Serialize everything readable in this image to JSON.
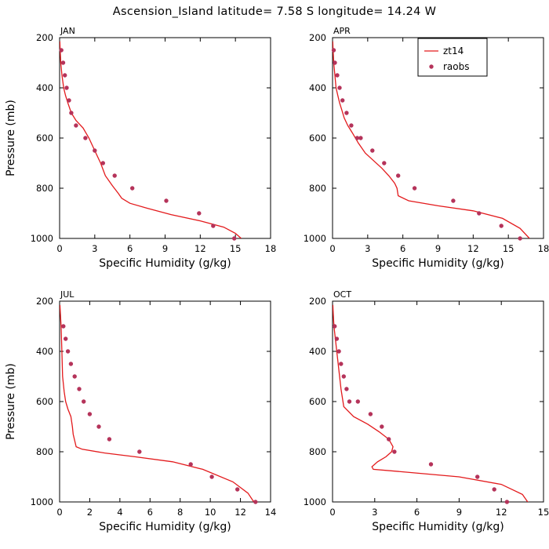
{
  "figure": {
    "title": "Ascension_Island  latitude= 7.58 S longitude= 14.24 W"
  },
  "legend": {
    "line_label": "zt14",
    "points_label": "raobs"
  },
  "colors": {
    "line": "#e31a1c",
    "points": "#b5335a"
  },
  "chart_data": [
    {
      "type": "line",
      "panel": "JAN",
      "xlabel": "Specific Humidity (g/kg)",
      "ylabel": "Pressure (mb)",
      "xlim": [
        0,
        18
      ],
      "xticks": [
        0,
        3,
        6,
        9,
        12,
        15,
        18
      ],
      "ylim": [
        200,
        1000
      ],
      "yticks": [
        200,
        400,
        600,
        800,
        1000
      ],
      "y_inverted": true,
      "legend": false,
      "series": [
        {
          "name": "zt14",
          "style": "line",
          "x": [
            0.02,
            0.05,
            0.1,
            0.2,
            0.35,
            0.5,
            0.7,
            1.0,
            1.4,
            2.0,
            2.5,
            3.0,
            3.5,
            3.9,
            4.5,
            5.0,
            5.3,
            6.0,
            7.5,
            9.5,
            12.0,
            14.0,
            15.0,
            15.5
          ],
          "y": [
            215,
            250,
            300,
            350,
            400,
            430,
            460,
            500,
            530,
            560,
            600,
            650,
            700,
            750,
            790,
            820,
            840,
            860,
            880,
            905,
            930,
            955,
            980,
            1000
          ]
        },
        {
          "name": "raobs",
          "style": "points",
          "x": [
            0.15,
            0.3,
            0.45,
            0.6,
            0.8,
            1.0,
            1.4,
            2.2,
            3.0,
            3.7,
            4.7,
            6.2,
            9.1,
            11.9,
            13.1,
            14.9
          ],
          "y": [
            250,
            300,
            350,
            400,
            450,
            500,
            550,
            600,
            650,
            700,
            750,
            800,
            850,
            900,
            950,
            1000
          ]
        }
      ]
    },
    {
      "type": "line",
      "panel": "APR",
      "xlabel": "Specific Humidity (g/kg)",
      "ylabel": "",
      "xlim": [
        0,
        18
      ],
      "xticks": [
        0,
        3,
        6,
        9,
        12,
        15,
        18
      ],
      "ylim": [
        200,
        1000
      ],
      "yticks": [
        200,
        400,
        600,
        800,
        1000
      ],
      "y_inverted": true,
      "legend": true,
      "series": [
        {
          "name": "zt14",
          "style": "line",
          "x": [
            0.02,
            0.05,
            0.1,
            0.2,
            0.3,
            0.45,
            0.6,
            0.8,
            1.0,
            1.3,
            1.7,
            2.2,
            2.8,
            3.5,
            4.2,
            4.8,
            5.3,
            5.5,
            5.6,
            6.5,
            9.0,
            12.0,
            14.5,
            16.0,
            16.8
          ],
          "y": [
            215,
            250,
            300,
            350,
            400,
            430,
            460,
            490,
            520,
            550,
            580,
            620,
            660,
            690,
            720,
            750,
            780,
            800,
            830,
            850,
            870,
            890,
            920,
            960,
            1000
          ]
        },
        {
          "name": "raobs",
          "style": "points",
          "x": [
            0.1,
            0.2,
            0.4,
            0.6,
            0.85,
            1.2,
            1.6,
            2.1,
            2.4,
            3.4,
            4.4,
            5.6,
            7.0,
            10.3,
            12.5,
            14.4,
            16.0
          ],
          "y": [
            250,
            300,
            350,
            400,
            450,
            500,
            550,
            600,
            600,
            650,
            700,
            750,
            800,
            850,
            900,
            950,
            1000
          ]
        }
      ]
    },
    {
      "type": "line",
      "panel": "JUL",
      "xlabel": "Specific Humidity (g/kg)",
      "ylabel": "Pressure (mb)",
      "xlim": [
        0,
        14
      ],
      "xticks": [
        0,
        2,
        4,
        6,
        8,
        10,
        12,
        14
      ],
      "ylim": [
        200,
        1000
      ],
      "yticks": [
        200,
        400,
        600,
        800,
        1000
      ],
      "y_inverted": true,
      "legend": false,
      "series": [
        {
          "name": "zt14",
          "style": "line",
          "x": [
            0.02,
            0.05,
            0.1,
            0.15,
            0.2,
            0.3,
            0.4,
            0.55,
            0.75,
            0.85,
            0.9,
            1.1,
            1.5,
            3.0,
            5.0,
            7.5,
            9.5,
            11.5,
            12.5,
            13.0
          ],
          "y": [
            215,
            250,
            300,
            400,
            500,
            560,
            600,
            630,
            660,
            700,
            730,
            780,
            790,
            805,
            820,
            840,
            870,
            920,
            965,
            1010
          ]
        },
        {
          "name": "raobs",
          "style": "points",
          "x": [
            0.25,
            0.4,
            0.55,
            0.75,
            1.0,
            1.3,
            1.6,
            2.0,
            2.6,
            3.3,
            5.3,
            8.7,
            10.1,
            11.8,
            13.0
          ],
          "y": [
            300,
            350,
            400,
            450,
            500,
            550,
            600,
            650,
            700,
            750,
            800,
            850,
            900,
            950,
            1000
          ]
        }
      ]
    },
    {
      "type": "line",
      "panel": "OCT",
      "xlabel": "Specific Humidity (g/kg)",
      "ylabel": "",
      "xlim": [
        0,
        15
      ],
      "xticks": [
        0,
        3,
        6,
        9,
        12,
        15
      ],
      "ylim": [
        200,
        1000
      ],
      "yticks": [
        200,
        400,
        600,
        800,
        1000
      ],
      "y_inverted": true,
      "legend": false,
      "series": [
        {
          "name": "zt14",
          "style": "line",
          "x": [
            0.02,
            0.05,
            0.1,
            0.2,
            0.3,
            0.4,
            0.5,
            0.6,
            0.8,
            1.5,
            2.5,
            3.3,
            4.0,
            4.3,
            4.2,
            3.8,
            3.2,
            2.8,
            2.9,
            5.0,
            9.0,
            12.0,
            13.5,
            14.0
          ],
          "y": [
            215,
            250,
            300,
            350,
            400,
            450,
            500,
            550,
            620,
            660,
            690,
            720,
            750,
            780,
            800,
            820,
            840,
            860,
            870,
            880,
            900,
            930,
            970,
            1010
          ]
        },
        {
          "name": "raobs",
          "style": "points",
          "x": [
            0.15,
            0.3,
            0.45,
            0.6,
            0.8,
            1.0,
            1.2,
            1.8,
            2.7,
            3.5,
            4.0,
            4.4,
            7.0,
            10.3,
            11.5,
            12.4
          ],
          "y": [
            300,
            350,
            400,
            450,
            500,
            550,
            600,
            600,
            650,
            700,
            750,
            800,
            850,
            900,
            950,
            1000
          ]
        }
      ]
    }
  ]
}
